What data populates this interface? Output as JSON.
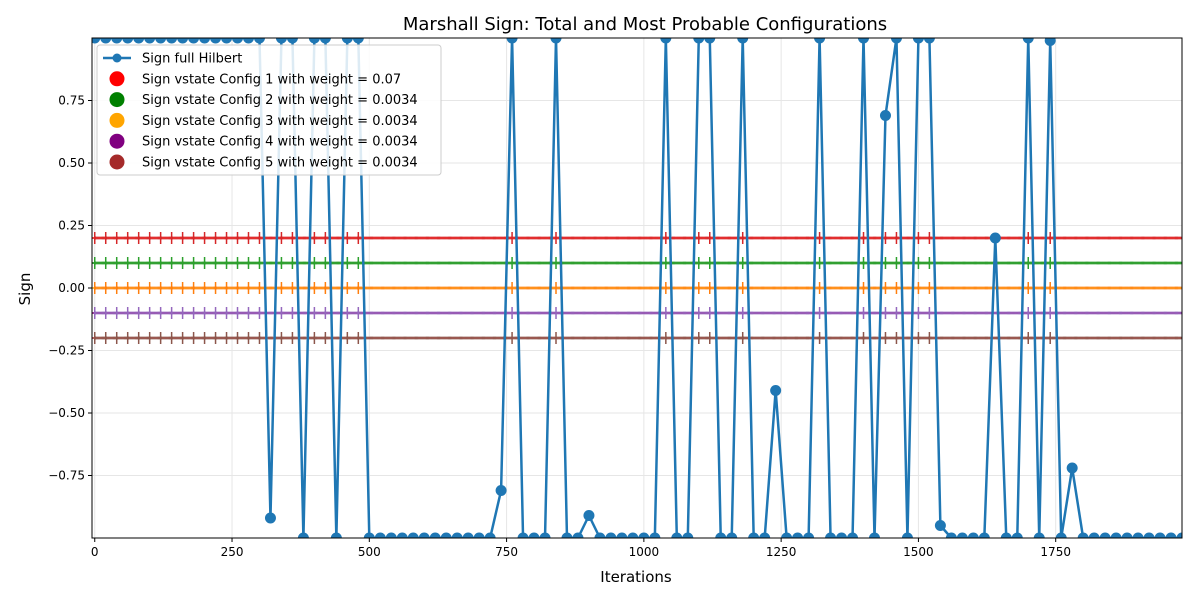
{
  "chart_data": {
    "type": "line",
    "title": "Marshall Sign: Total and Most Probable Configurations",
    "xlabel": "Iterations",
    "ylabel": "Sign",
    "xlim": [
      -5,
      1980
    ],
    "ylim": [
      -1.0,
      1.0
    ],
    "x_ticks": [
      0,
      250,
      500,
      750,
      1000,
      1250,
      1500,
      1750
    ],
    "y_ticks": [
      -0.75,
      -0.5,
      -0.25,
      0.0,
      0.25,
      0.5,
      0.75
    ],
    "y_tick_labels": [
      "−0.75",
      "−0.50",
      "−0.25",
      "0.00",
      "0.25",
      "0.50",
      "0.75"
    ],
    "grid": true,
    "legend_position": "upper-left",
    "full_series": {
      "name": "Sign full Hilbert",
      "color": "#1f77b4",
      "x": [
        0,
        20,
        40,
        60,
        80,
        100,
        120,
        140,
        160,
        180,
        200,
        220,
        240,
        260,
        280,
        300,
        320,
        340,
        360,
        380,
        400,
        420,
        440,
        460,
        480,
        500,
        520,
        540,
        560,
        580,
        600,
        620,
        640,
        660,
        680,
        700,
        720,
        740,
        760,
        780,
        800,
        820,
        840,
        860,
        880,
        900,
        920,
        940,
        960,
        980,
        1000,
        1020,
        1040,
        1060,
        1080,
        1100,
        1120,
        1140,
        1160,
        1180,
        1200,
        1220,
        1240,
        1260,
        1280,
        1300,
        1320,
        1340,
        1360,
        1380,
        1400,
        1420,
        1440,
        1460,
        1480,
        1500,
        1520,
        1540,
        1560,
        1580,
        1600,
        1620,
        1640,
        1660,
        1680,
        1700,
        1720,
        1740,
        1760,
        1780,
        1800,
        1820,
        1840,
        1860,
        1880,
        1900,
        1920,
        1940,
        1960,
        1980
      ],
      "y": [
        1,
        1,
        1,
        1,
        1,
        1,
        1,
        1,
        1,
        1,
        1,
        1,
        1,
        1,
        1,
        1,
        -0.92,
        1,
        1,
        -1,
        1,
        1,
        -1,
        1,
        1,
        -1,
        -1,
        -1,
        -1,
        -1,
        -1,
        -1,
        -1,
        -1,
        -1,
        -1,
        -1,
        -0.81,
        1,
        -1,
        -1,
        -1,
        1,
        -1,
        -1,
        -0.91,
        -1,
        -1,
        -1,
        -1,
        -1,
        -1,
        1,
        -1,
        -1,
        1,
        1,
        -1,
        -1,
        1,
        -1,
        -1,
        -0.41,
        -1,
        -1,
        -1,
        1,
        -1,
        -1,
        -1,
        1,
        -1,
        0.69,
        1,
        -1,
        1,
        1,
        -0.95,
        -1,
        -1,
        -1,
        -1,
        0.2,
        -1,
        -1,
        1,
        -1,
        0.99,
        -1,
        -0.72,
        -1,
        -1,
        -1,
        -1,
        -1,
        -1,
        -1,
        -1,
        -1,
        -1
      ]
    },
    "config_series": [
      {
        "name": "Sign vstate Config 1 with weight = 0.07",
        "color": "#ff0000",
        "tick_color": "#d62728",
        "y": 0.2
      },
      {
        "name": "Sign vstate Config 2 with weight = 0.0034",
        "color": "#008000",
        "tick_color": "#2ca02c",
        "y": 0.1
      },
      {
        "name": "Sign vstate Config 3 with weight = 0.0034",
        "color": "#ffa500",
        "tick_color": "#ff7f0e",
        "y": 0.0
      },
      {
        "name": "Sign vstate Config 4 with weight = 0.0034",
        "color": "#800080",
        "tick_color": "#9467bd",
        "y": -0.1
      },
      {
        "name": "Sign vstate Config 5 with weight = 0.0034",
        "color": "#a52a2a",
        "tick_color": "#8c564b",
        "y": -0.2
      }
    ]
  }
}
